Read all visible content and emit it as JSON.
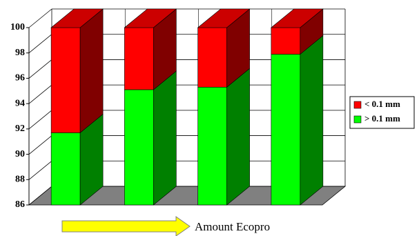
{
  "chart_data": {
    "type": "bar3d_stacked",
    "annotation": "Amount Ecopro",
    "categories": [
      null,
      null,
      null,
      null
    ],
    "series": [
      {
        "name": "> 0.1 mm",
        "color": "#00ff00",
        "values": [
          91.7,
          95.1,
          95.3,
          97.9
        ]
      },
      {
        "name": "< 0.1 mm",
        "color": "#ff0000",
        "values": [
          8.3,
          4.9,
          4.7,
          2.1
        ]
      }
    ],
    "ylim": [
      86,
      100
    ],
    "yticks": [
      86,
      88,
      90,
      92,
      94,
      96,
      98,
      100
    ],
    "grid": true,
    "legend": "right"
  }
}
